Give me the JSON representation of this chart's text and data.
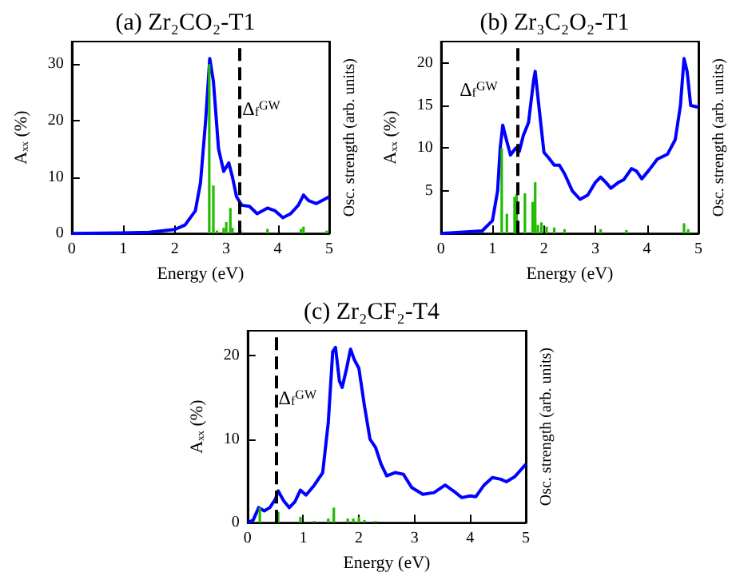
{
  "chart_data": [
    {
      "type": "line",
      "title": "(a) Zr₂CO₂-T1",
      "xlabel": "Energy (eV)",
      "ylabel": "Aₓₓ (%)",
      "y2label": "Osc. strength (arb. units)",
      "xlim": [
        0,
        5
      ],
      "xticks": [
        0,
        1,
        2,
        3,
        4,
        5
      ],
      "ylim": [
        0,
        34
      ],
      "yticks": [
        0,
        10,
        20,
        30
      ],
      "grid": false,
      "marker": "none",
      "series": [
        {
          "color": "#0000ff",
          "x": [
            0,
            1,
            1.5,
            2,
            2.2,
            2.4,
            2.5,
            2.6,
            2.68,
            2.75,
            2.85,
            2.95,
            3.05,
            3.12,
            3.2,
            3.3,
            3.45,
            3.6,
            3.8,
            3.95,
            4.1,
            4.25,
            4.4,
            4.5,
            4.6,
            4.75,
            4.9,
            5
          ],
          "values": [
            0,
            0.1,
            0.2,
            0.7,
            1.5,
            4,
            9,
            20,
            31,
            27,
            15,
            11,
            12.5,
            10,
            6.5,
            5,
            4.8,
            3.5,
            4.5,
            4,
            2.8,
            3.5,
            5,
            6.8,
            5.8,
            5.3,
            6,
            6.5
          ]
        },
        {
          "type": "bar",
          "color": "#22bb00",
          "x": [
            2.67,
            2.75,
            2.82,
            2.95,
            3.0,
            3.08,
            3.12,
            3.3,
            3.8,
            4.45,
            4.5,
            4.95
          ],
          "values": [
            30,
            8.5,
            0.5,
            1,
            2,
            4.5,
            1,
            0.3,
            0.8,
            0.8,
            1.2,
            0.5
          ]
        }
      ],
      "ref_lines": [
        {
          "axis": "x",
          "value": 3.25,
          "label": "Δ$_{f}$$^{GW}$",
          "color": "#000000",
          "line_style": "dashed"
        }
      ]
    },
    {
      "type": "line",
      "title": "(b) Zr₃C₂O₂-T1",
      "xlabel": "Energy (eV)",
      "ylabel": "Aₓₓ (%)",
      "y2label": "Osc. strength (arb. units)",
      "xlim": [
        0,
        5
      ],
      "xticks": [
        0,
        1,
        2,
        3,
        4,
        5
      ],
      "ylim": [
        0,
        22.5
      ],
      "yticks": [
        5,
        10,
        15,
        20
      ],
      "grid": false,
      "marker": "none",
      "series": [
        {
          "color": "#0000ff",
          "x": [
            0,
            0.8,
            1.0,
            1.1,
            1.15,
            1.2,
            1.27,
            1.35,
            1.45,
            1.52,
            1.6,
            1.7,
            1.8,
            1.83,
            1.9,
            2.0,
            2.1,
            2.2,
            2.3,
            2.4,
            2.55,
            2.7,
            2.85,
            3.0,
            3.1,
            3.2,
            3.3,
            3.45,
            3.55,
            3.7,
            3.8,
            3.9,
            4.05,
            4.2,
            4.4,
            4.55,
            4.65,
            4.72,
            4.78,
            4.85,
            5
          ],
          "values": [
            0,
            0.3,
            1.5,
            5,
            10,
            12.7,
            11,
            9.2,
            10,
            9.6,
            11.5,
            13,
            18,
            19,
            15,
            9.5,
            8.8,
            8,
            8,
            7,
            5,
            4,
            4.5,
            6,
            6.6,
            6,
            5.3,
            6,
            6.3,
            7.6,
            7.3,
            6.4,
            7.5,
            8.7,
            9.3,
            11,
            15,
            20.5,
            19,
            15,
            14.8
          ]
        },
        {
          "type": "bar",
          "color": "#22bb00",
          "x": [
            1.18,
            1.28,
            1.43,
            1.47,
            1.63,
            1.78,
            1.83,
            1.88,
            1.95,
            2.05,
            2.2,
            2.4,
            3.1,
            3.6,
            4.72,
            4.8
          ],
          "values": [
            10,
            2.3,
            4.3,
            4.6,
            4.7,
            3.7,
            6,
            1,
            1.3,
            0.8,
            0.7,
            0.5,
            0.5,
            0.4,
            1.2,
            0.5
          ]
        }
      ],
      "ref_lines": [
        {
          "axis": "x",
          "value": 1.48,
          "label": "Δ$_{f}$$^{GW}$",
          "color": "#000000",
          "line_style": "dashed"
        }
      ]
    },
    {
      "type": "line",
      "title": "(c) Zr₂CF₂-T4",
      "xlabel": "Energy (eV)",
      "ylabel": "Aₓₓ (%)",
      "y2label": "Osc. strength (arb. units)",
      "xlim": [
        0,
        5
      ],
      "xticks": [
        0,
        1,
        2,
        3,
        4,
        5
      ],
      "ylim": [
        0,
        23
      ],
      "yticks": [
        0,
        10,
        20
      ],
      "grid": false,
      "marker": "none",
      "series": [
        {
          "color": "#0000ff",
          "x": [
            0,
            0.1,
            0.2,
            0.3,
            0.4,
            0.5,
            0.55,
            0.65,
            0.75,
            0.85,
            0.95,
            1.05,
            1.2,
            1.35,
            1.45,
            1.53,
            1.58,
            1.65,
            1.7,
            1.78,
            1.85,
            1.92,
            2.0,
            2.1,
            2.2,
            2.3,
            2.4,
            2.5,
            2.65,
            2.8,
            2.95,
            3.15,
            3.35,
            3.55,
            3.7,
            3.85,
            4.0,
            4.1,
            4.25,
            4.4,
            4.55,
            4.65,
            4.8,
            5
          ],
          "values": [
            0,
            0.3,
            1.8,
            1.4,
            1.8,
            2.8,
            3.8,
            2.6,
            1.8,
            2.5,
            3.9,
            3.3,
            4.5,
            6,
            12,
            20.5,
            21,
            17,
            16.2,
            18.5,
            20.8,
            19.5,
            18.5,
            14,
            10,
            9,
            7,
            5.6,
            6,
            5.8,
            4.2,
            3.4,
            3.6,
            4.5,
            3.8,
            3,
            3.2,
            3.1,
            4.5,
            5.4,
            5.2,
            4.9,
            5.5,
            7
          ]
        },
        {
          "type": "bar",
          "color": "#22bb00",
          "x": [
            0.22,
            0.55,
            0.95,
            1.2,
            1.45,
            1.55,
            1.8,
            1.9,
            2.0,
            2.1,
            2.3
          ],
          "values": [
            1.8,
            1.3,
            0.7,
            0.2,
            0.5,
            1.8,
            0.5,
            0.5,
            0.7,
            0.3,
            0.2
          ]
        }
      ],
      "ref_lines": [
        {
          "axis": "x",
          "value": 0.5,
          "label": "Δ$_{f}$$^{GW}$",
          "color": "#000000",
          "line_style": "dashed"
        }
      ]
    }
  ]
}
